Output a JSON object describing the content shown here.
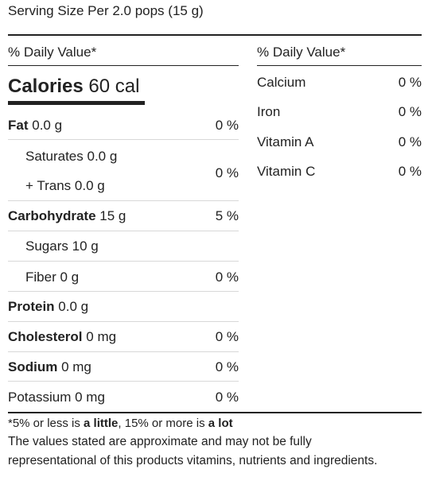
{
  "serving": "Serving Size Per 2.0 pops (15 g)",
  "left": {
    "dv_header": "% Daily Value*",
    "calories_label": "Calories",
    "calories_value": "60 cal",
    "rows": [
      {
        "label": "Fat",
        "value": "0.0 g",
        "pct": "0 %"
      },
      {
        "label": "Saturates",
        "value": "0.0 g"
      },
      {
        "label": "+ Trans",
        "value": "0.0 g",
        "pct": "0 %"
      },
      {
        "label": "Carbohydrate",
        "value": "15 g",
        "pct": "5 %"
      },
      {
        "label": "Sugars",
        "value": "10 g"
      },
      {
        "label": "Fiber",
        "value": "0 g",
        "pct": "0 %"
      },
      {
        "label": "Protein",
        "value": "0.0 g"
      },
      {
        "label": "Cholesterol",
        "value": "0 mg",
        "pct": "0 %"
      },
      {
        "label": "Sodium",
        "value": "0 mg",
        "pct": "0 %"
      },
      {
        "label": "Potassium",
        "value": "0 mg",
        "pct": "0 %"
      }
    ]
  },
  "right": {
    "dv_header": "% Daily Value*",
    "rows": [
      {
        "label": "Calcium",
        "pct": "0 %"
      },
      {
        "label": "Iron",
        "pct": "0 %"
      },
      {
        "label": "Vitamin A",
        "pct": "0 %"
      },
      {
        "label": "Vitamin C",
        "pct": "0 %"
      }
    ]
  },
  "footnote": {
    "part1": "*5% or less is ",
    "little": "a little",
    "part2": ", 15% or more is ",
    "lot": "a lot",
    "disclaimer_line1": "The values stated are approximate and may not be fully",
    "disclaimer_line2": "representational of this products vitamins, nutrients and ingredients."
  }
}
